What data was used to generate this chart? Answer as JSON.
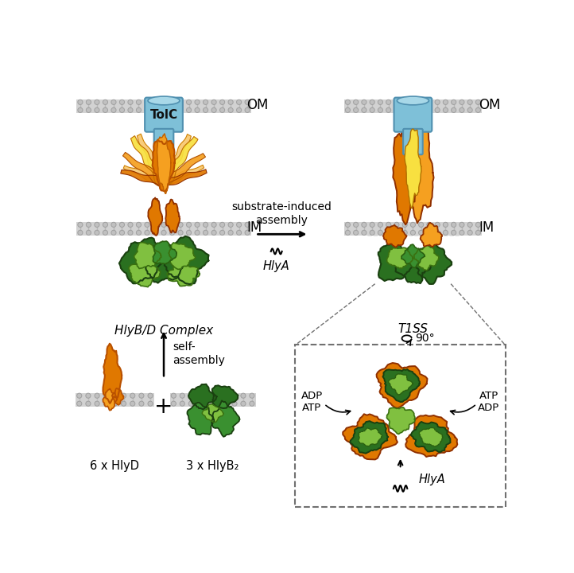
{
  "bg_color": "#ffffff",
  "mem_bg": "#d2d2d2",
  "mem_head": "#c0c0c0",
  "mem_stroke": "#a0a0a0",
  "tolc_fill": "#7ec0d8",
  "tolc_stroke": "#5090b0",
  "tolc_top": "#a8d8e8",
  "orange_dk": "#e07800",
  "orange_md": "#f5a020",
  "orange_lt": "#f8c870",
  "yellow_lt": "#f8e040",
  "green_dk": "#2a7020",
  "green_md": "#3a9030",
  "green_lt": "#80c040",
  "text_color": "#000000",
  "dash_color": "#707070",
  "lbl_tolc": "TolC",
  "lbl_om": "OM",
  "lbl_im": "IM",
  "lbl_hlya": "HlyA",
  "lbl_6hlyd": "6 x HlyD",
  "lbl_3hlyb": "3 x HlyB₂",
  "lbl_title_l": "HlyB/D Complex",
  "lbl_title_r": "T1SS",
  "lbl_assembly": "substrate-induced\nassembly",
  "lbl_self": "self-\nassembly",
  "lbl_90": "90°",
  "figw": 7.22,
  "figh": 7.2,
  "dpi": 100
}
